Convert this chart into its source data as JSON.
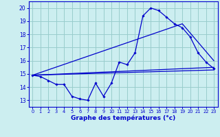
{
  "title": "Graphe des températures (°c)",
  "bg_color": "#cceef0",
  "grid_color": "#99cccc",
  "line_color": "#0000cc",
  "xlim": [
    -0.5,
    23.5
  ],
  "ylim": [
    12.5,
    20.5
  ],
  "yticks": [
    13,
    14,
    15,
    16,
    17,
    18,
    19,
    20
  ],
  "xticks": [
    0,
    1,
    2,
    3,
    4,
    5,
    6,
    7,
    8,
    9,
    10,
    11,
    12,
    13,
    14,
    15,
    16,
    17,
    18,
    19,
    20,
    21,
    22,
    23
  ],
  "series": {
    "line_main": {
      "x": [
        0,
        1,
        2,
        3,
        4,
        5,
        6,
        7,
        8,
        9,
        10,
        11,
        12,
        13,
        14,
        15,
        16,
        17,
        18,
        19,
        20,
        21,
        22,
        23
      ],
      "y": [
        14.9,
        14.8,
        14.5,
        14.2,
        14.2,
        13.3,
        13.1,
        13.0,
        14.3,
        13.3,
        14.3,
        15.9,
        15.7,
        16.6,
        19.4,
        20.0,
        19.8,
        19.3,
        18.8,
        18.5,
        17.8,
        16.6,
        15.9,
        15.4
      ]
    },
    "line_flat1": {
      "x": [
        0,
        23
      ],
      "y": [
        14.9,
        15.3
      ]
    },
    "line_flat2": {
      "x": [
        0,
        23
      ],
      "y": [
        14.9,
        15.5
      ]
    },
    "line_steep": {
      "x": [
        0,
        19,
        23
      ],
      "y": [
        14.9,
        18.8,
        16.0
      ]
    }
  }
}
